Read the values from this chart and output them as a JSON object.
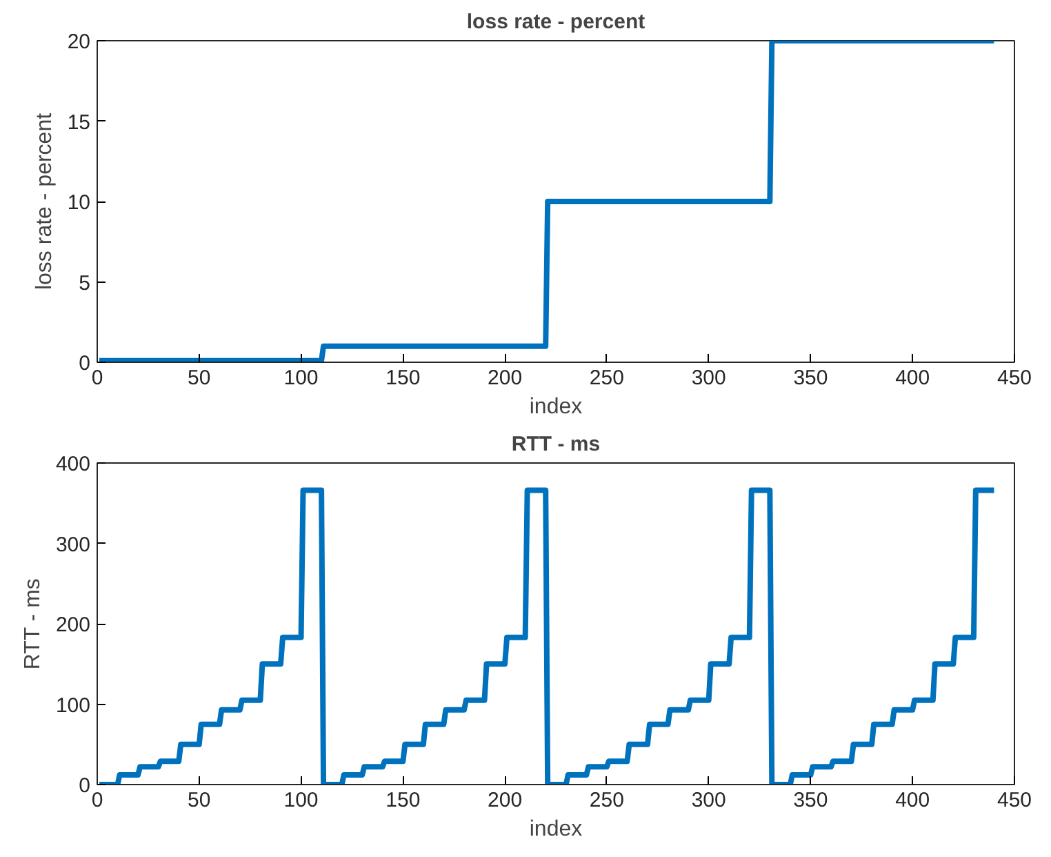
{
  "chart_data": [
    {
      "type": "line",
      "title": "loss rate - percent",
      "xlabel": "index",
      "ylabel": "loss rate - percent",
      "x": [
        1,
        110,
        111,
        220,
        221,
        330,
        331,
        440
      ],
      "series": [
        {
          "color": "#0072bd",
          "values": [
            0.1,
            0.1,
            1,
            1,
            10,
            10,
            20,
            20
          ]
        }
      ],
      "xlim": [
        0,
        450
      ],
      "ylim": [
        0,
        20
      ],
      "xticks": [
        0,
        50,
        100,
        150,
        200,
        250,
        300,
        350,
        400,
        450
      ],
      "yticks": [
        0,
        5,
        10,
        15,
        20
      ],
      "grid": false,
      "line_style": "solid"
    },
    {
      "type": "line",
      "title": "RTT - ms",
      "xlabel": "index",
      "ylabel": "RTT - ms",
      "x": [
        1,
        10,
        11,
        20,
        21,
        30,
        31,
        40,
        41,
        50,
        51,
        60,
        61,
        70,
        71,
        80,
        81,
        90,
        91,
        100,
        101,
        110,
        111,
        120,
        121,
        130,
        131,
        140,
        141,
        150,
        151,
        160,
        161,
        170,
        171,
        180,
        181,
        190,
        191,
        200,
        201,
        210,
        211,
        220,
        221,
        230,
        231,
        240,
        241,
        250,
        251,
        260,
        261,
        270,
        271,
        280,
        281,
        290,
        291,
        300,
        301,
        310,
        311,
        320,
        321,
        330,
        331,
        340,
        341,
        350,
        351,
        360,
        361,
        370,
        371,
        380,
        381,
        390,
        391,
        400,
        401,
        410,
        411,
        420,
        421,
        430,
        431,
        440
      ],
      "series": [
        {
          "color": "#0072bd",
          "values": [
            0,
            0,
            12,
            12,
            22,
            22,
            29,
            29,
            50,
            50,
            75,
            75,
            93,
            93,
            105,
            105,
            150,
            150,
            183,
            183,
            366,
            366,
            0,
            0,
            12,
            12,
            22,
            22,
            29,
            29,
            50,
            50,
            75,
            75,
            93,
            93,
            105,
            105,
            150,
            150,
            183,
            183,
            366,
            366,
            0,
            0,
            12,
            12,
            22,
            22,
            29,
            29,
            50,
            50,
            75,
            75,
            93,
            93,
            105,
            105,
            150,
            150,
            183,
            183,
            366,
            366,
            0,
            0,
            12,
            12,
            22,
            22,
            29,
            29,
            50,
            50,
            75,
            75,
            93,
            93,
            105,
            105,
            150,
            150,
            183,
            183,
            366,
            366
          ]
        }
      ],
      "xlim": [
        0,
        450
      ],
      "ylim": [
        0,
        400
      ],
      "xticks": [
        0,
        50,
        100,
        150,
        200,
        250,
        300,
        350,
        400,
        450
      ],
      "yticks": [
        0,
        100,
        200,
        300,
        400
      ],
      "grid": false,
      "line_style": "solid"
    }
  ]
}
